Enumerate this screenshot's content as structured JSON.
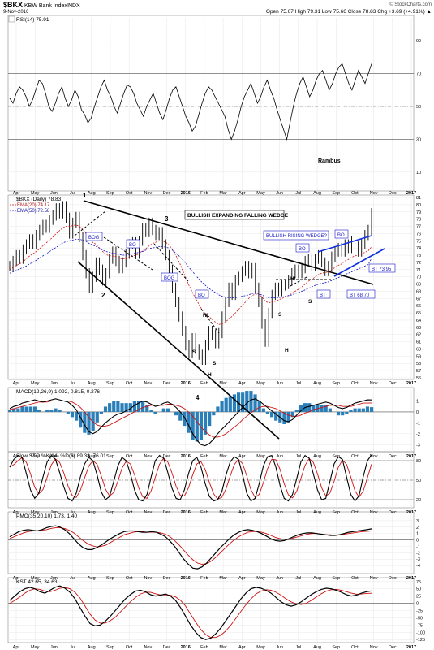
{
  "header": {
    "symbol": "$BKX",
    "name": "KBW Bank Index",
    "exchange": "INDX",
    "date": "9-Nov-2016",
    "ohlc": "Open 75.67  High 79.31  Low 75.66  Close 78.83  Chg +3.69 (+4.91%) ▲",
    "watermark": "© StockCharts.com"
  },
  "annotation_author": "Rambus",
  "colors": {
    "price": "#000000",
    "ema20": "#d01010",
    "ema50": "#1010c0",
    "macd_hist": "#2a7fb8",
    "blue_text": "#1a1ac8",
    "blue_line": "#1030e0"
  },
  "x_axis": {
    "labels": [
      "Apr",
      "May",
      "Jun",
      "Jul",
      "Aug",
      "Sep",
      "Oct",
      "Nov",
      "Dec",
      "2016",
      "Feb",
      "Mar",
      "Apr",
      "May",
      "Jun",
      "Jul",
      "Aug",
      "Sep",
      "Oct",
      "Nov",
      "Dec",
      "2017"
    ]
  },
  "chart_data": [
    {
      "type": "line",
      "panel": "rsi",
      "legend": "RSI(14) 75.91",
      "ylim": [
        0,
        100
      ],
      "y_ticks": [
        10,
        30,
        50,
        70,
        90
      ],
      "reference_lines": [
        30,
        50,
        70
      ],
      "values": [
        55,
        52,
        58,
        62,
        60,
        56,
        50,
        54,
        60,
        66,
        64,
        58,
        50,
        47,
        52,
        58,
        62,
        55,
        50,
        54,
        60,
        56,
        48,
        45,
        40,
        43,
        50,
        56,
        62,
        66,
        60,
        56,
        50,
        46,
        52,
        58,
        63,
        62,
        58,
        52,
        48,
        44,
        50,
        54,
        58,
        52,
        46,
        42,
        48,
        55,
        60,
        62,
        56,
        50,
        44,
        40,
        35,
        38,
        45,
        52,
        58,
        62,
        60,
        56,
        52,
        48,
        44,
        36,
        30,
        35,
        42,
        50,
        56,
        60,
        64,
        58,
        52,
        56,
        62,
        66,
        60,
        55,
        48,
        42,
        36,
        30,
        40,
        50,
        58,
        64,
        68,
        62,
        56,
        60,
        66,
        70,
        72,
        66,
        60,
        64,
        70,
        74,
        76,
        70,
        64,
        60,
        66,
        72,
        68,
        64,
        70,
        76
      ]
    },
    {
      "type": "line",
      "panel": "price",
      "title": "$BKX (Daily) 78.83",
      "series": [
        {
          "name": "EMA(20) 74.17"
        },
        {
          "name": "EMA(50) 72.58"
        }
      ],
      "ylim": [
        56,
        81
      ],
      "y_ticks": [
        56,
        57,
        58,
        59,
        60,
        61,
        62,
        63,
        64,
        65,
        66,
        67,
        68,
        69,
        70,
        71,
        72,
        73,
        74,
        75,
        76,
        77,
        78,
        79,
        80,
        81
      ],
      "values": [
        71.5,
        72.2,
        73.0,
        72.5,
        73.8,
        74.5,
        75.2,
        74.6,
        75.8,
        76.5,
        77.2,
        76.8,
        77.9,
        78.5,
        79.5,
        78.8,
        79.8,
        78.2,
        76.0,
        77.5,
        78.3,
        75.5,
        73.0,
        70.5,
        68.5,
        70.0,
        72.0,
        71.0,
        69.5,
        70.5,
        72.5,
        73.5,
        72.2,
        71.2,
        72.0,
        73.2,
        74.5,
        74.8,
        73.2,
        75.0,
        76.8,
        76.2,
        77.5,
        76.5,
        75.8,
        76.2,
        74.5,
        73.0,
        71.0,
        68.5,
        66.5,
        64.5,
        62.5,
        60.5,
        59.5,
        61.5,
        60.0,
        59.2,
        58.5,
        60.5,
        62.5,
        62.0,
        60.8,
        62.2,
        64.5,
        66.5,
        68.5,
        67.5,
        69.5,
        70.0,
        70.8,
        71.5,
        70.5,
        71.2,
        68.5,
        66.5,
        63.5,
        61.0,
        65.0,
        67.5,
        68.5,
        68.0,
        68.8,
        69.0,
        69.5,
        70.5,
        71.0,
        70.5,
        71.2,
        72.2,
        72.5,
        71.5,
        72.5,
        73.0,
        72.0,
        70.8,
        71.5,
        72.8,
        73.5,
        74.0,
        73.5,
        74.5,
        74.0,
        75.0,
        74.2,
        73.5,
        74.5,
        75.8,
        76.5,
        78.83
      ],
      "ema20": [
        71.0,
        71.3,
        71.6,
        71.8,
        72.1,
        72.5,
        72.9,
        73.2,
        73.5,
        73.9,
        74.3,
        74.7,
        75.1,
        75.5,
        76.0,
        76.4,
        76.8,
        77.0,
        77.0,
        77.1,
        77.2,
        77.0,
        76.6,
        76.0,
        75.3,
        74.8,
        74.5,
        74.0,
        73.5,
        73.1,
        72.9,
        72.9,
        72.8,
        72.6,
        72.5,
        72.5,
        72.7,
        72.9,
        73.0,
        73.2,
        73.6,
        73.9,
        74.3,
        74.6,
        74.8,
        75.0,
        75.0,
        74.8,
        74.4,
        73.8,
        73.0,
        72.1,
        71.0,
        69.9,
        68.8,
        67.9,
        67.0,
        66.2,
        65.4,
        64.8,
        64.5,
        64.1,
        63.7,
        63.4,
        63.5,
        63.7,
        64.2,
        64.5,
        65.0,
        65.5,
        66.0,
        66.5,
        67.0,
        67.4,
        67.6,
        67.6,
        67.2,
        66.6,
        66.4,
        66.5,
        66.6,
        66.8,
        67.0,
        67.2,
        67.4,
        67.7,
        68.0,
        68.3,
        68.6,
        69.0,
        69.4,
        69.6,
        70.0,
        70.3,
        70.5,
        70.6,
        70.7,
        71.0,
        71.3,
        71.6,
        71.8,
        72.2,
        72.4,
        72.7,
        72.9,
        73.0,
        73.2,
        73.4,
        73.6,
        74.17
      ],
      "ema50": [
        70.5,
        70.7,
        70.9,
        71.1,
        71.3,
        71.5,
        71.8,
        72.0,
        72.3,
        72.6,
        72.9,
        73.2,
        73.5,
        73.8,
        74.1,
        74.4,
        74.7,
        74.9,
        75.0,
        75.1,
        75.2,
        75.2,
        75.1,
        74.9,
        74.6,
        74.4,
        74.2,
        74.0,
        73.7,
        73.5,
        73.4,
        73.3,
        73.2,
        73.1,
        73.0,
        73.0,
        73.1,
        73.2,
        73.3,
        73.4,
        73.5,
        73.7,
        73.9,
        74.0,
        74.1,
        74.2,
        74.2,
        74.1,
        74.0,
        73.7,
        73.3,
        72.9,
        72.4,
        71.9,
        71.3,
        70.8,
        70.2,
        69.7,
        69.2,
        68.8,
        68.4,
        68.1,
        67.8,
        67.5,
        67.3,
        67.2,
        67.1,
        67.1,
        67.1,
        67.2,
        67.3,
        67.4,
        67.5,
        67.7,
        67.7,
        67.6,
        67.5,
        67.2,
        67.1,
        67.1,
        67.1,
        67.1,
        67.2,
        67.3,
        67.4,
        67.5,
        67.7,
        67.8,
        68.0,
        68.2,
        68.4,
        68.6,
        68.8,
        69.0,
        69.1,
        69.2,
        69.3,
        69.5,
        69.7,
        69.9,
        70.1,
        70.3,
        70.5,
        70.7,
        70.9,
        71.1,
        71.3,
        71.5,
        71.7,
        72.58
      ]
    },
    {
      "type": "line",
      "panel": "macd",
      "legend": "MACD(12,26,9) 1.092, 0.815, 0.276",
      "ylim": [
        -3.5,
        2.0
      ],
      "y_ticks": [
        -3,
        -2,
        -1,
        0,
        1
      ],
      "values": [
        0.3,
        0.5,
        0.6,
        0.8,
        0.9,
        1.0,
        1.1,
        1.0,
        0.9,
        1.0,
        1.1,
        1.2,
        1.1,
        1.0,
        0.9,
        0.6,
        0.2,
        -0.5,
        -1.2,
        -1.8,
        -2.0,
        -1.8,
        -1.4,
        -1.0,
        -0.7,
        -0.4,
        -0.2,
        -0.1,
        0.1,
        0.3,
        0.6,
        0.8,
        1.0,
        0.9,
        0.7,
        0.5,
        0.6,
        0.8,
        0.9,
        0.7,
        0.4,
        0.0,
        -0.5,
        -1.2,
        -2.0,
        -2.6,
        -3.0,
        -3.1,
        -2.9,
        -2.5,
        -2.0,
        -1.6,
        -1.2,
        -0.8,
        -0.4,
        0.0,
        0.4,
        0.8,
        1.1,
        1.2,
        1.0,
        0.7,
        0.4,
        0.1,
        -0.2,
        -0.5,
        -0.8,
        -0.9,
        -0.7,
        -0.3,
        0.1,
        0.4,
        0.5,
        0.6,
        0.7,
        0.8,
        0.9,
        0.8,
        0.6,
        0.4,
        0.3,
        0.4,
        0.6,
        0.8,
        0.9,
        1.0,
        1.1,
        1.09
      ],
      "signal": [
        0.2,
        0.3,
        0.4,
        0.5,
        0.6,
        0.7,
        0.8,
        0.9,
        0.9,
        0.9,
        1.0,
        1.0,
        1.0,
        1.0,
        1.0,
        0.9,
        0.7,
        0.4,
        0.0,
        -0.5,
        -0.9,
        -1.2,
        -1.3,
        -1.3,
        -1.2,
        -1.0,
        -0.8,
        -0.6,
        -0.4,
        -0.2,
        0.0,
        0.2,
        0.4,
        0.5,
        0.6,
        0.6,
        0.6,
        0.6,
        0.7,
        0.7,
        0.6,
        0.5,
        0.3,
        0.0,
        -0.4,
        -0.9,
        -1.4,
        -1.8,
        -2.1,
        -2.3,
        -2.3,
        -2.2,
        -2.0,
        -1.7,
        -1.4,
        -1.1,
        -0.7,
        -0.4,
        -0.1,
        0.2,
        0.4,
        0.5,
        0.5,
        0.4,
        0.3,
        0.1,
        -0.1,
        -0.3,
        -0.4,
        -0.4,
        -0.3,
        -0.1,
        0.0,
        0.2,
        0.3,
        0.4,
        0.5,
        0.6,
        0.6,
        0.6,
        0.5,
        0.5,
        0.5,
        0.6,
        0.7,
        0.8,
        0.8,
        0.82
      ]
    },
    {
      "type": "line",
      "panel": "stochastic",
      "legend": "Slow STO %K(14) %D(3) 89.38, 76.01",
      "ylim": [
        10,
        90
      ],
      "y_ticks": [
        20,
        50,
        80
      ],
      "reference_lines": [
        20,
        50,
        80
      ],
      "values": [
        70,
        82,
        88,
        84,
        60,
        35,
        22,
        30,
        55,
        78,
        88,
        82,
        62,
        40,
        22,
        18,
        30,
        55,
        75,
        85,
        80,
        58,
        32,
        20,
        25,
        48,
        72,
        85,
        80,
        60,
        35,
        20,
        18,
        28,
        55,
        80,
        88,
        84,
        62,
        38,
        22,
        20,
        35,
        60,
        80,
        85,
        70,
        45,
        25,
        18,
        20,
        32,
        58,
        78,
        86,
        82,
        58,
        30,
        18,
        22,
        45,
        72,
        86,
        88,
        70,
        42,
        22,
        18,
        28,
        52,
        78,
        88,
        84,
        60,
        35,
        20,
        22,
        48,
        75,
        86,
        82,
        55,
        28,
        18,
        26,
        55,
        80,
        89
      ]
    },
    {
      "type": "line",
      "panel": "pmo",
      "legend": "PMO(35,20,10) 1.73, 1.40",
      "ylim": [
        -5,
        4
      ],
      "y_ticks": [
        -4,
        -3,
        -2,
        -1,
        0,
        1,
        2,
        3
      ],
      "reference_lines": [
        0
      ],
      "values": [
        0.5,
        0.9,
        1.3,
        1.5,
        1.6,
        1.5,
        1.4,
        1.6,
        1.9,
        2.1,
        2.2,
        2.0,
        1.6,
        1.0,
        0.2,
        -0.6,
        -1.2,
        -1.5,
        -1.5,
        -1.2,
        -0.8,
        -0.3,
        0.2,
        0.6,
        1.0,
        1.3,
        1.4,
        1.4,
        1.3,
        1.2,
        1.2,
        1.3,
        1.2,
        0.9,
        0.5,
        -0.2,
        -1.0,
        -2.0,
        -3.0,
        -3.8,
        -4.4,
        -4.5,
        -4.2,
        -3.6,
        -2.8,
        -2.0,
        -1.2,
        -0.5,
        0.2,
        0.8,
        1.2,
        1.5,
        1.6,
        1.5,
        1.3,
        1.0,
        0.6,
        0.2,
        -0.1,
        -0.2,
        -0.1,
        0.2,
        0.5,
        0.8,
        1.0,
        1.1,
        1.1,
        1.0,
        0.9,
        0.8,
        0.7,
        0.7,
        0.8,
        1.0,
        1.2,
        1.3,
        1.4,
        1.5,
        1.6,
        1.73
      ],
      "signal": [
        0.2,
        0.5,
        0.8,
        1.1,
        1.3,
        1.4,
        1.4,
        1.5,
        1.6,
        1.8,
        1.9,
        1.9,
        1.8,
        1.5,
        1.1,
        0.5,
        -0.1,
        -0.6,
        -0.9,
        -1.1,
        -1.0,
        -0.8,
        -0.4,
        0.0,
        0.4,
        0.8,
        1.0,
        1.2,
        1.3,
        1.3,
        1.2,
        1.2,
        1.2,
        1.1,
        0.9,
        0.5,
        -0.1,
        -0.8,
        -1.6,
        -2.4,
        -3.1,
        -3.6,
        -3.8,
        -3.7,
        -3.3,
        -2.7,
        -2.0,
        -1.3,
        -0.6,
        0.0,
        0.5,
        0.9,
        1.2,
        1.3,
        1.3,
        1.2,
        1.0,
        0.7,
        0.4,
        0.2,
        0.1,
        0.1,
        0.3,
        0.5,
        0.7,
        0.9,
        1.0,
        1.0,
        0.9,
        0.8,
        0.8,
        0.7,
        0.8,
        0.9,
        1.0,
        1.1,
        1.2,
        1.3,
        1.35,
        1.4
      ]
    },
    {
      "type": "line",
      "panel": "kst",
      "legend": "KST 42.65, 34.63",
      "ylim": [
        -130,
        80
      ],
      "y_ticks": [
        -125,
        -100,
        -75,
        -50,
        -25,
        0,
        25,
        50,
        75
      ],
      "reference_lines": [
        0
      ],
      "values": [
        10,
        25,
        40,
        50,
        55,
        50,
        40,
        35,
        45,
        55,
        60,
        52,
        38,
        15,
        -15,
        -45,
        -70,
        -78,
        -75,
        -62,
        -45,
        -25,
        -5,
        15,
        30,
        42,
        45,
        40,
        30,
        25,
        28,
        32,
        25,
        10,
        -15,
        -45,
        -75,
        -100,
        -118,
        -125,
        -120,
        -105,
        -85,
        -60,
        -35,
        -10,
        15,
        35,
        50,
        55,
        52,
        45,
        35,
        20,
        5,
        -5,
        -10,
        -5,
        5,
        18,
        30,
        40,
        48,
        52,
        50,
        45,
        38,
        30,
        25,
        28,
        35,
        40,
        42.65
      ],
      "signal": [
        0,
        10,
        22,
        35,
        45,
        50,
        48,
        42,
        40,
        45,
        52,
        55,
        50,
        38,
        18,
        -10,
        -38,
        -58,
        -68,
        -68,
        -60,
        -48,
        -30,
        -12,
        5,
        20,
        32,
        38,
        38,
        33,
        29,
        29,
        28,
        22,
        10,
        -10,
        -38,
        -65,
        -90,
        -108,
        -118,
        -118,
        -110,
        -95,
        -75,
        -52,
        -28,
        -5,
        15,
        32,
        42,
        47,
        45,
        38,
        28,
        15,
        5,
        -2,
        -4,
        0,
        10,
        22,
        33,
        42,
        47,
        48,
        45,
        40,
        35,
        31,
        32,
        34,
        34.63
      ]
    }
  ],
  "annotations": {
    "wedge_label": "BULLISH EXPANDING FALLING WEDGE",
    "rising_wedge_label": "BULLISH RISING WEDGE?",
    "pivot_1": "1",
    "pivot_2": "2",
    "pivot_3": "3",
    "pivot_4": "4",
    "bog_1": "BOG",
    "bog_2": "BOG",
    "bo_1": "BO",
    "bo_2": "BO",
    "bo_3": "BO",
    "bo_4": "BO",
    "bt_1": "BT",
    "bt_2": "BT 73.95",
    "bt_3": "BT 68.70",
    "s_1": "S",
    "s_2": "S",
    "s_3": "S",
    "s_4": "S",
    "h_1": "H",
    "h_2": "H",
    "hl_1": "HL",
    "hl_2": "HL"
  }
}
